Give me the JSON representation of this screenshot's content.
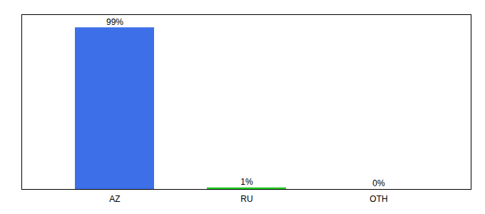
{
  "chart_data": {
    "type": "bar",
    "categories": [
      "AZ",
      "RU",
      "OTH"
    ],
    "values": [
      99,
      1,
      0
    ],
    "value_labels": [
      "99%",
      "1%",
      "0%"
    ],
    "colors": [
      "#3d6fe8",
      "#22cc22",
      "#3d6fe8"
    ],
    "ylim": [
      0,
      107
    ],
    "data_labels": true,
    "tick_labels": "x",
    "grid": false
  }
}
